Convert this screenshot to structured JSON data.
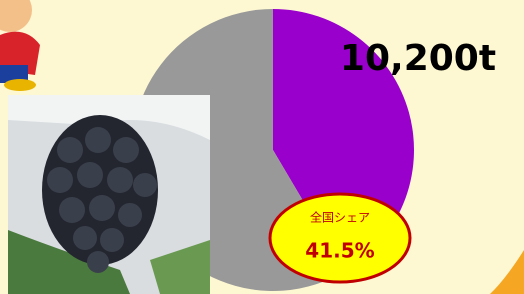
{
  "chart_data": {
    "type": "pie",
    "series": [
      {
        "values": [
          41.5,
          58.5
        ],
        "colors": [
          "#9900cc",
          "#999999"
        ],
        "value_labels": [
          "41.5%",
          null
        ]
      }
    ],
    "annotation": "10,200t",
    "share_label": "全国シェア"
  }
}
